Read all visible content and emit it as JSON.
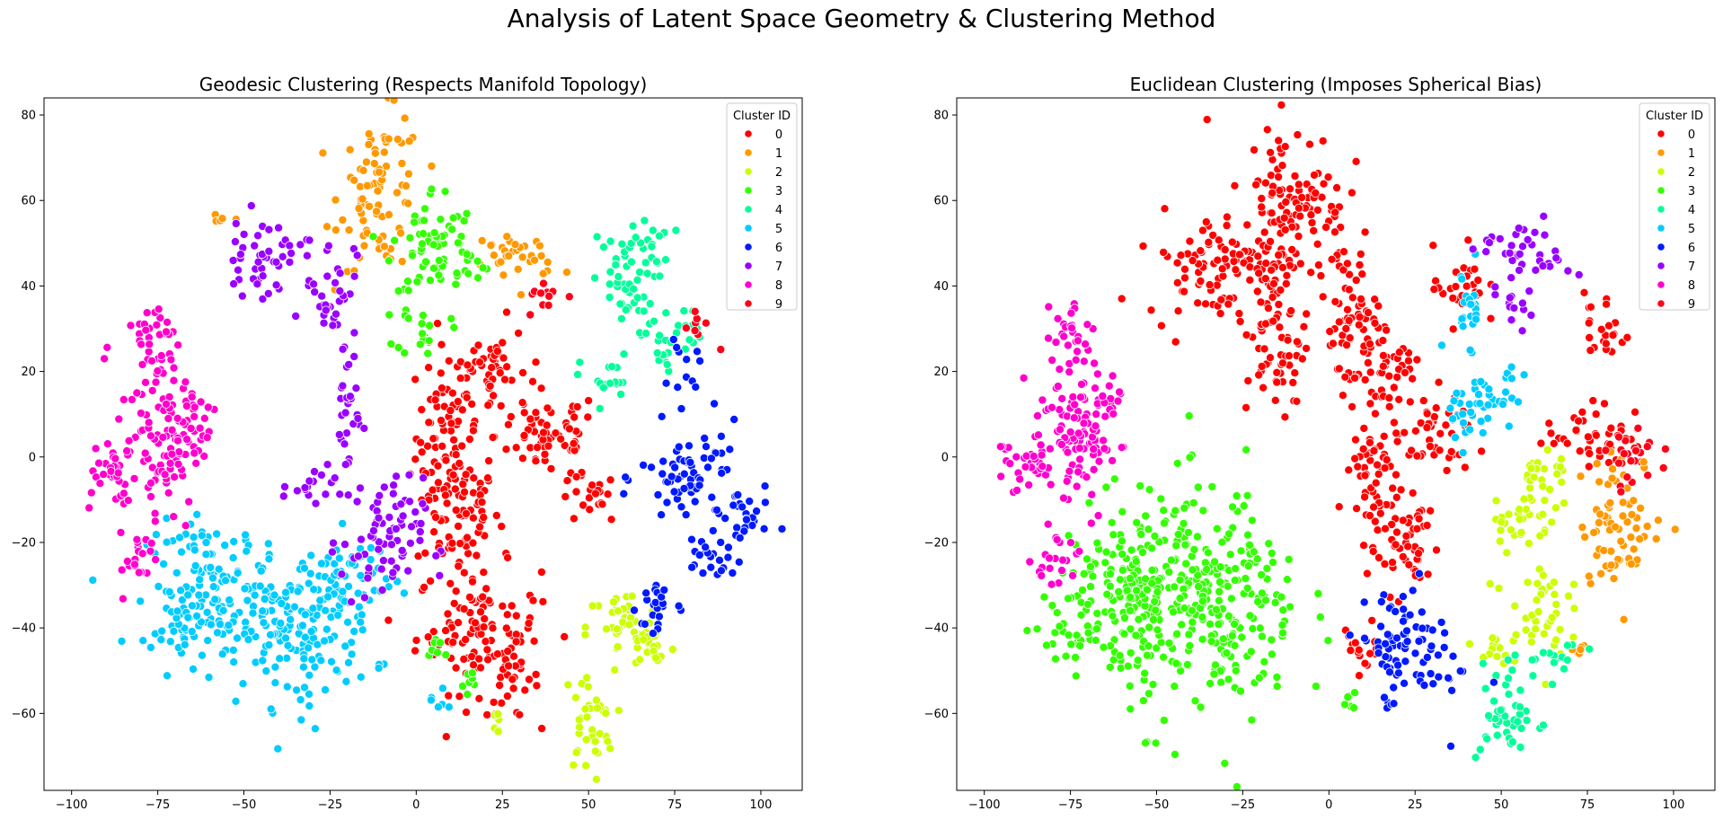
{
  "suptitle": "Analysis of Latent Space Geometry & Clustering Method",
  "legend_title": "Cluster ID",
  "cluster_colors": [
    "#ff0000",
    "#ff9900",
    "#ccff00",
    "#33ff00",
    "#00ff99",
    "#00ccff",
    "#0019ff",
    "#9900ff",
    "#ff00cc",
    "#ff0019"
  ],
  "chart_data": [
    {
      "type": "scatter",
      "title": "Geodesic Clustering (Respects Manifold Topology)",
      "xlabel": "",
      "ylabel": "",
      "xlim": [
        -108,
        112
      ],
      "ylim": [
        -78,
        84
      ],
      "xticks": [
        -100,
        -75,
        -50,
        -25,
        0,
        25,
        50,
        75,
        100
      ],
      "yticks": [
        -60,
        -40,
        -20,
        0,
        20,
        40,
        60,
        80
      ],
      "grid": false,
      "legend": {
        "title": "Cluster ID",
        "position": "top-right",
        "labels": [
          "0",
          "1",
          "2",
          "3",
          "4",
          "5",
          "6",
          "7",
          "8",
          "9"
        ]
      },
      "clusters": [
        {
          "cluster": 0,
          "regions": [
            [
              9,
              5,
              6,
              14
            ],
            [
              12,
              -12,
              8,
              10
            ],
            [
              22,
              20,
              7,
              8
            ],
            [
              18,
              -40,
              12,
              10
            ],
            [
              28,
              -52,
              5,
              6
            ],
            [
              38,
              5,
              10,
              7
            ],
            [
              50,
              -10,
              6,
              4
            ]
          ]
        },
        {
          "cluster": 1,
          "regions": [
            [
              -10,
              62,
              8,
              12
            ],
            [
              25,
              48,
              6,
              3
            ],
            [
              33,
              47,
              6,
              3
            ],
            [
              -57,
              55,
              2,
              1
            ]
          ]
        },
        {
          "cluster": 2,
          "regions": [
            [
              50,
              -62,
              5,
              8
            ],
            [
              60,
              -40,
              7,
              6
            ],
            [
              68,
              -45,
              5,
              4
            ],
            [
              24,
              -62,
              1,
              2
            ]
          ]
        },
        {
          "cluster": 3,
          "regions": [
            [
              5,
              50,
              8,
              9
            ],
            [
              2,
              30,
              5,
              4
            ],
            [
              15,
              45,
              4,
              3
            ],
            [
              14,
              -53,
              3,
              3
            ],
            [
              6,
              -45,
              3,
              3
            ]
          ]
        },
        {
          "cluster": 4,
          "regions": [
            [
              60,
              40,
              6,
              8
            ],
            [
              67,
              50,
              5,
              4
            ],
            [
              75,
              30,
              5,
              4
            ],
            [
              55,
              18,
              5,
              4
            ],
            [
              72,
              22,
              3,
              3
            ]
          ]
        },
        {
          "cluster": 5,
          "regions": [
            [
              -35,
              -40,
              15,
              12
            ],
            [
              -60,
              -30,
              12,
              10
            ],
            [
              -20,
              -30,
              8,
              8
            ],
            [
              -65,
              -40,
              8,
              5
            ],
            [
              6,
              -58,
              2,
              2
            ]
          ]
        },
        {
          "cluster": 6,
          "regions": [
            [
              80,
              -5,
              10,
              8
            ],
            [
              95,
              -15,
              5,
              6
            ],
            [
              85,
              -25,
              5,
              4
            ],
            [
              70,
              -35,
              4,
              6
            ],
            [
              78,
              20,
              3,
              4
            ]
          ]
        },
        {
          "cluster": 7,
          "regions": [
            [
              -45,
              47,
              8,
              6
            ],
            [
              -25,
              40,
              5,
              8
            ],
            [
              -20,
              12,
              3,
              12
            ],
            [
              -10,
              -20,
              8,
              10
            ],
            [
              -30,
              -8,
              6,
              3
            ]
          ]
        },
        {
          "cluster": 8,
          "regions": [
            [
              -75,
              5,
              8,
              15
            ],
            [
              -75,
              28,
              4,
              7
            ],
            [
              -90,
              -2,
              5,
              5
            ],
            [
              -65,
              10,
              5,
              6
            ],
            [
              -80,
              -25,
              4,
              5
            ]
          ]
        },
        {
          "cluster": 9,
          "regions": [
            [
              38,
              38,
              4,
              3
            ],
            [
              82,
              30,
              3,
              3
            ]
          ]
        }
      ]
    },
    {
      "type": "scatter",
      "title": "Euclidean Clustering (Imposes Spherical Bias)",
      "xlabel": "",
      "ylabel": "",
      "xlim": [
        -108,
        112
      ],
      "ylim": [
        -78,
        84
      ],
      "xticks": [
        -100,
        -75,
        -50,
        -25,
        0,
        25,
        50,
        75,
        100
      ],
      "yticks": [
        -60,
        -40,
        -20,
        0,
        20,
        40,
        60,
        80
      ],
      "grid": false,
      "legend": {
        "title": "Cluster ID",
        "position": "top-right",
        "labels": [
          "0",
          "1",
          "2",
          "3",
          "4",
          "5",
          "6",
          "7",
          "8",
          "9"
        ]
      },
      "clusters": [
        {
          "cluster": 0,
          "regions": [
            [
              -10,
              60,
              10,
              12
            ],
            [
              -35,
              45,
              12,
              8
            ],
            [
              -15,
              30,
              6,
              15
            ],
            [
              5,
              35,
              6,
              10
            ],
            [
              15,
              20,
              8,
              8
            ],
            [
              12,
              -5,
              6,
              10
            ],
            [
              22,
              -20,
              7,
              8
            ],
            [
              30,
              5,
              8,
              6
            ],
            [
              38,
              40,
              5,
              6
            ],
            [
              80,
              30,
              4,
              6
            ],
            [
              78,
              5,
              10,
              5
            ],
            [
              10,
              -45,
              5,
              4
            ]
          ]
        },
        {
          "cluster": 1,
          "regions": [
            [
              85,
              -15,
              8,
              10
            ],
            [
              72,
              -45,
              2,
              2
            ]
          ]
        },
        {
          "cluster": 2,
          "regions": [
            [
              55,
              -15,
              6,
              5
            ],
            [
              60,
              -35,
              6,
              8
            ],
            [
              62,
              -5,
              5,
              6
            ],
            [
              48,
              -45,
              4,
              3
            ]
          ]
        },
        {
          "cluster": 3,
          "regions": [
            [
              -35,
              -35,
              18,
              18
            ],
            [
              -60,
              -30,
              12,
              12
            ],
            [
              -75,
              -40,
              6,
              5
            ],
            [
              6,
              -58,
              1,
              2
            ]
          ]
        },
        {
          "cluster": 4,
          "regions": [
            [
              52,
              -60,
              6,
              8
            ],
            [
              65,
              -48,
              6,
              3
            ]
          ]
        },
        {
          "cluster": 5,
          "regions": [
            [
              40,
              35,
              4,
              6
            ],
            [
              40,
              10,
              6,
              5
            ],
            [
              50,
              15,
              5,
              4
            ]
          ]
        },
        {
          "cluster": 6,
          "regions": [
            [
              20,
              -45,
              8,
              10
            ],
            [
              35,
              -50,
              4,
              4
            ]
          ]
        },
        {
          "cluster": 7,
          "regions": [
            [
              60,
              48,
              7,
              5
            ],
            [
              55,
              35,
              4,
              4
            ],
            [
              48,
              50,
              3,
              2
            ]
          ]
        },
        {
          "cluster": 8,
          "regions": [
            [
              -75,
              5,
              8,
              15
            ],
            [
              -75,
              28,
              4,
              7
            ],
            [
              -90,
              -2,
              5,
              5
            ],
            [
              -65,
              10,
              5,
              6
            ],
            [
              -80,
              -25,
              4,
              5
            ]
          ]
        },
        {
          "cluster": 9,
          "regions": [
            [
              88,
              0,
              5,
              5
            ]
          ]
        }
      ]
    }
  ]
}
